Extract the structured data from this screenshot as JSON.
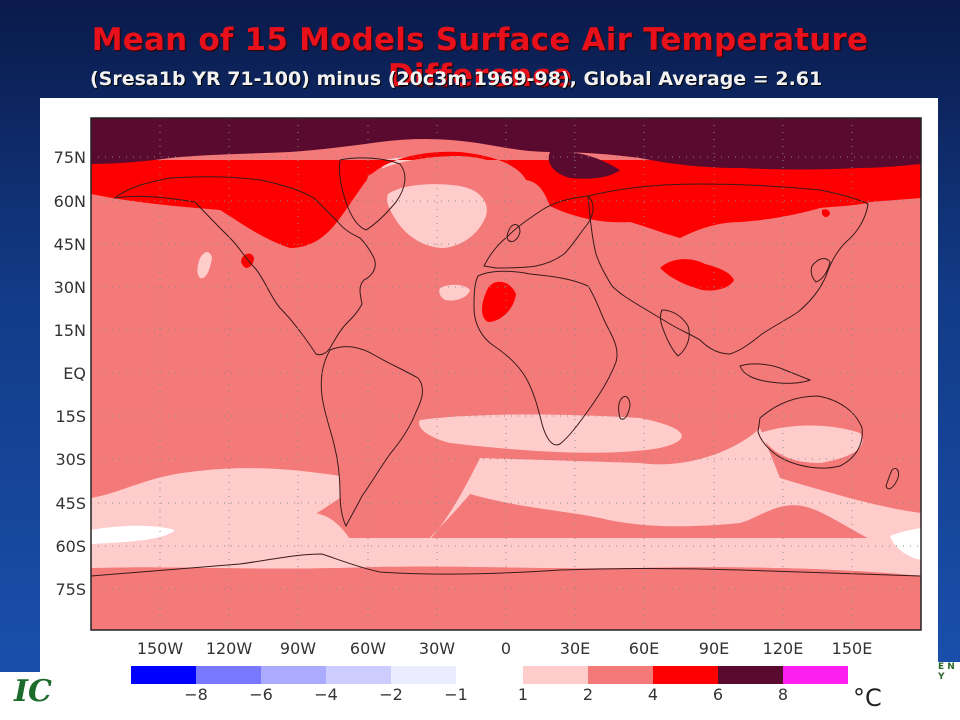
{
  "title": "Mean of 15 Models Surface Air Temperature Difference",
  "subtitle": "(Sresa1b YR 71-100) minus (20c3m 1969-98),   Global Average = 2.61",
  "map": {
    "lat_labels": [
      "75N",
      "60N",
      "45N",
      "30N",
      "15N",
      "EQ",
      "15S",
      "30S",
      "45S",
      "60S",
      "75S"
    ],
    "lon_labels": [
      "150W",
      "120W",
      "90W",
      "60W",
      "30W",
      "0",
      "30E",
      "60E",
      "90E",
      "120E",
      "150E"
    ],
    "graticule": "dotted"
  },
  "colorbar": {
    "unit": "°C",
    "neg_colors": [
      "#0000ff",
      "#7878ff",
      "#aaaaff",
      "#ccccff",
      "#ececff"
    ],
    "pos_colors": [
      "#ffcccc",
      "#f47a7a",
      "#ff0000",
      "#5a0a2e",
      "#ff1ef0"
    ],
    "neg_ticks": [
      "−8",
      "−6",
      "−4",
      "−2",
      "−1"
    ],
    "pos_ticks": [
      "1",
      "2",
      "4",
      "6",
      "8"
    ]
  },
  "field_colors": {
    "band_1_2": "#ffcccc",
    "band_2_4": "#f47a7a",
    "band_4_6": "#ff0000",
    "band_6_8": "#5a0a2e"
  },
  "logos": {
    "left_text": "IC",
    "right_text": "E N Y"
  }
}
